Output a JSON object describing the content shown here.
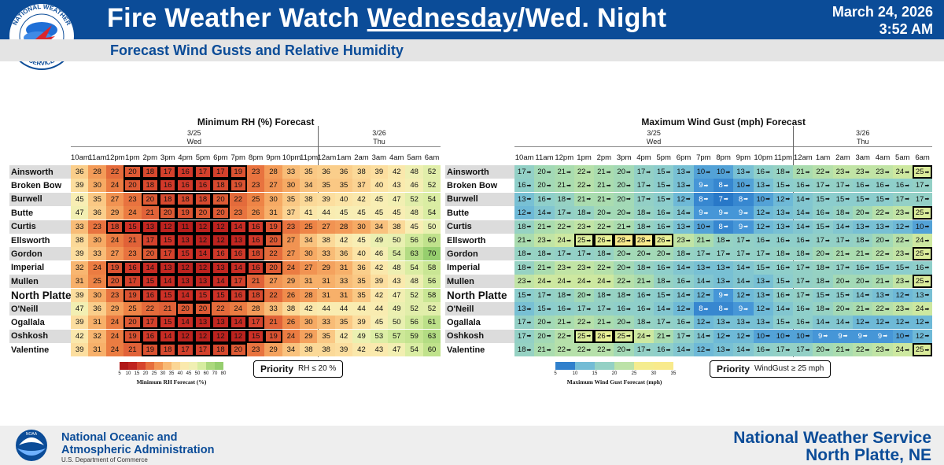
{
  "header": {
    "title_pre": "Fire Weather Watch ",
    "title_under": "Wednesday",
    "title_post": "/Wed. Night",
    "date": "March 24, 2026",
    "time": "3:52 AM",
    "subtitle": "Forecast Wind Gusts and Relative Humidity",
    "logo_text": "NATIONAL WEATHER SERVICE"
  },
  "hours": [
    "10am",
    "11am",
    "12pm",
    "1pm",
    "2pm",
    "3pm",
    "4pm",
    "5pm",
    "6pm",
    "7pm",
    "8pm",
    "9pm",
    "10pm",
    "11pm",
    "12am",
    "1am",
    "2am",
    "3am",
    "4am",
    "5am",
    "6am"
  ],
  "days": {
    "d1_date": "3/25",
    "d1_name": "Wed",
    "d2_date": "3/26",
    "d2_name": "Thu"
  },
  "locations": [
    "Ainsworth",
    "Broken Bow",
    "Burwell",
    "Butte",
    "Curtis",
    "Ellsworth",
    "Gordon",
    "Imperial",
    "Mullen",
    "North Platte",
    "O'Neill",
    "Ogallala",
    "Oshkosh",
    "Valentine"
  ],
  "rh": {
    "title": "Minimum RH (%) Forecast",
    "values": [
      [
        36,
        28,
        22,
        20,
        18,
        17,
        16,
        17,
        17,
        19,
        23,
        28,
        33,
        35,
        36,
        36,
        38,
        39,
        42,
        48,
        52
      ],
      [
        39,
        30,
        24,
        20,
        18,
        16,
        16,
        16,
        18,
        19,
        23,
        27,
        30,
        34,
        35,
        35,
        37,
        40,
        43,
        46,
        52
      ],
      [
        45,
        35,
        27,
        23,
        20,
        18,
        18,
        18,
        20,
        22,
        25,
        30,
        35,
        38,
        39,
        40,
        42,
        45,
        47,
        52,
        54
      ],
      [
        47,
        36,
        29,
        24,
        21,
        20,
        19,
        20,
        20,
        23,
        26,
        31,
        37,
        41,
        44,
        45,
        45,
        45,
        45,
        48,
        54
      ],
      [
        33,
        23,
        18,
        15,
        13,
        12,
        11,
        12,
        12,
        14,
        16,
        19,
        23,
        25,
        27,
        28,
        30,
        34,
        38,
        45,
        50
      ],
      [
        38,
        30,
        24,
        21,
        17,
        15,
        13,
        12,
        12,
        13,
        16,
        20,
        27,
        34,
        38,
        42,
        45,
        49,
        50,
        56,
        60
      ],
      [
        39,
        33,
        27,
        23,
        20,
        17,
        15,
        14,
        16,
        16,
        18,
        22,
        27,
        30,
        33,
        36,
        40,
        46,
        54,
        63,
        70
      ],
      [
        32,
        24,
        19,
        16,
        14,
        13,
        12,
        12,
        13,
        14,
        16,
        20,
        24,
        27,
        29,
        31,
        36,
        42,
        48,
        54,
        58
      ],
      [
        31,
        25,
        20,
        17,
        15,
        14,
        13,
        13,
        14,
        17,
        21,
        27,
        29,
        31,
        31,
        33,
        35,
        39,
        43,
        48,
        56
      ],
      [
        39,
        30,
        23,
        19,
        16,
        15,
        14,
        15,
        15,
        16,
        18,
        22,
        26,
        28,
        31,
        31,
        35,
        42,
        47,
        52,
        58
      ],
      [
        47,
        36,
        29,
        25,
        22,
        21,
        20,
        20,
        22,
        24,
        28,
        33,
        38,
        42,
        44,
        44,
        44,
        44,
        49,
        52,
        52
      ],
      [
        39,
        31,
        24,
        20,
        17,
        15,
        14,
        13,
        13,
        14,
        17,
        21,
        26,
        30,
        33,
        35,
        39,
        45,
        50,
        56,
        61
      ],
      [
        42,
        32,
        24,
        19,
        16,
        14,
        12,
        12,
        12,
        12,
        15,
        19,
        24,
        29,
        35,
        42,
        49,
        53,
        57,
        59,
        63
      ],
      [
        39,
        31,
        24,
        21,
        19,
        18,
        17,
        17,
        18,
        20,
        23,
        29,
        34,
        38,
        38,
        39,
        42,
        43,
        47,
        54,
        60
      ]
    ],
    "colorbar_label": "Minimum RH Forecast (%)",
    "colorbar_ticks": [
      "5",
      "10",
      "15",
      "20",
      "25",
      "30",
      "35",
      "40",
      "45",
      "50",
      "60",
      "70",
      "80"
    ],
    "priority_label": "Priority",
    "priority_rule": "RH ≤ 20 %"
  },
  "wind": {
    "title": "Maximum Wind Gust (mph) Forecast",
    "values": [
      [
        17,
        20,
        21,
        22,
        21,
        20,
        17,
        15,
        13,
        10,
        10,
        13,
        16,
        18,
        21,
        22,
        23,
        23,
        23,
        24,
        25
      ],
      [
        16,
        20,
        21,
        22,
        21,
        20,
        17,
        15,
        13,
        9,
        8,
        10,
        13,
        15,
        16,
        17,
        17,
        16,
        16,
        16,
        17
      ],
      [
        13,
        16,
        18,
        21,
        21,
        20,
        17,
        15,
        12,
        8,
        7,
        8,
        10,
        12,
        14,
        15,
        15,
        15,
        15,
        17,
        17
      ],
      [
        12,
        14,
        17,
        18,
        20,
        20,
        18,
        16,
        14,
        9,
        9,
        9,
        12,
        13,
        14,
        16,
        18,
        20,
        22,
        23,
        25
      ],
      [
        18,
        21,
        22,
        23,
        22,
        21,
        18,
        16,
        13,
        10,
        8,
        9,
        12,
        13,
        14,
        15,
        14,
        13,
        13,
        12,
        10
      ],
      [
        21,
        23,
        24,
        25,
        26,
        28,
        28,
        26,
        23,
        21,
        18,
        17,
        16,
        16,
        16,
        17,
        17,
        18,
        20,
        22,
        24
      ],
      [
        18,
        18,
        17,
        17,
        18,
        20,
        20,
        20,
        18,
        17,
        17,
        17,
        17,
        18,
        18,
        20,
        21,
        21,
        22,
        23,
        25
      ],
      [
        18,
        21,
        23,
        23,
        22,
        20,
        18,
        16,
        14,
        13,
        13,
        14,
        15,
        16,
        17,
        18,
        17,
        16,
        15,
        15,
        16
      ],
      [
        23,
        24,
        24,
        24,
        24,
        22,
        21,
        18,
        16,
        14,
        13,
        14,
        13,
        15,
        17,
        18,
        20,
        20,
        21,
        23,
        25
      ],
      [
        15,
        17,
        18,
        20,
        18,
        18,
        16,
        15,
        14,
        12,
        9,
        12,
        13,
        16,
        17,
        15,
        15,
        14,
        13,
        12,
        13
      ],
      [
        13,
        15,
        16,
        17,
        17,
        16,
        16,
        14,
        12,
        8,
        8,
        9,
        12,
        14,
        16,
        18,
        20,
        21,
        22,
        23,
        24
      ],
      [
        17,
        20,
        21,
        22,
        21,
        20,
        18,
        17,
        16,
        12,
        13,
        13,
        13,
        15,
        16,
        14,
        14,
        12,
        12,
        12,
        12
      ],
      [
        17,
        20,
        22,
        25,
        26,
        25,
        24,
        21,
        17,
        14,
        12,
        12,
        10,
        10,
        10,
        9,
        9,
        9,
        9,
        10,
        12
      ],
      [
        18,
        21,
        22,
        22,
        22,
        20,
        17,
        16,
        14,
        12,
        13,
        14,
        16,
        17,
        17,
        20,
        21,
        22,
        23,
        24,
        25
      ]
    ],
    "colorbar_label": "Maximum Wind Gust Forecast (mph)",
    "colorbar_ticks": [
      "5",
      "10",
      "15",
      "20",
      "25",
      "30",
      "35"
    ],
    "priority_label": "Priority",
    "priority_rule": "WindGust ≥ 25 mph"
  },
  "footer": {
    "noaa_line1": "National Oceanic and",
    "noaa_line2": "Atmospheric Administration",
    "noaa_sub": "U.S. Department of Commerce",
    "nws_line1": "National Weather Service",
    "nws_line2": "North Platte, NE"
  },
  "colors": {
    "brand": "#0b4c98",
    "priority_outline": "#000000"
  }
}
